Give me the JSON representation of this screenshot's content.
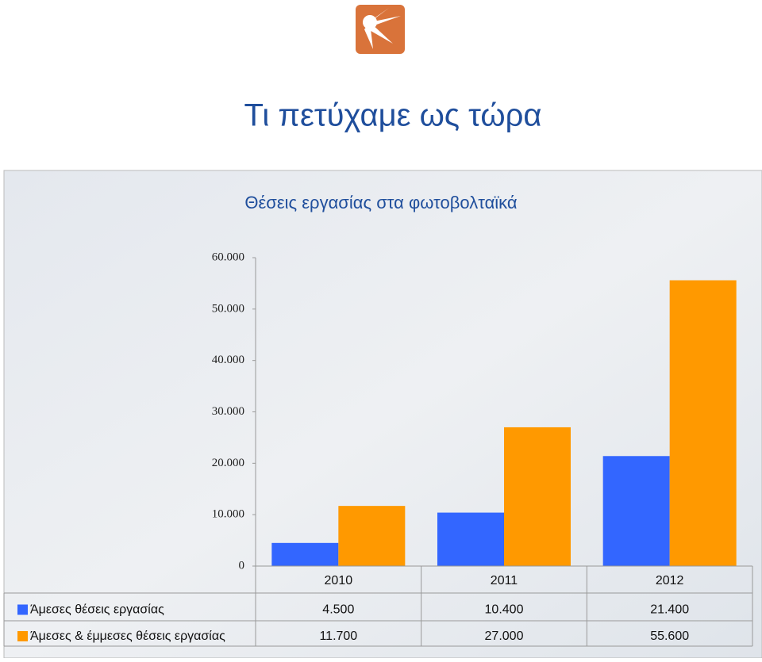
{
  "heading": "Τι πετύχαμε ως τώρα",
  "chart_data": {
    "type": "bar",
    "title": "Θέσεις εργασίας στα φωτοβολταϊκά",
    "categories": [
      "2010",
      "2011",
      "2012"
    ],
    "series": [
      {
        "name": "Άμεσες θέσεις εργασίας",
        "color": "#3366ff",
        "values": [
          4500,
          10400,
          21400
        ],
        "value_labels": [
          "4.500",
          "10.400",
          "21.400"
        ]
      },
      {
        "name": "Άμεσες & έμμεσες θέσεις εργασίας",
        "color": "#ff9900",
        "values": [
          11700,
          27000,
          55600
        ],
        "value_labels": [
          "11.700",
          "27.000",
          "55.600"
        ]
      }
    ],
    "ylim": [
      0,
      60000
    ],
    "yticks": [
      0,
      {
        "value": 10000,
        "label": "10.000"
      },
      {
        "value": 20000,
        "label": "20.000"
      },
      {
        "value": 30000,
        "label": "30.000"
      },
      {
        "value": 40000,
        "label": "40.000"
      },
      {
        "value": 50000,
        "label": "50.000"
      },
      {
        "value": 60000,
        "label": "60.000"
      }
    ],
    "data_table": true
  }
}
